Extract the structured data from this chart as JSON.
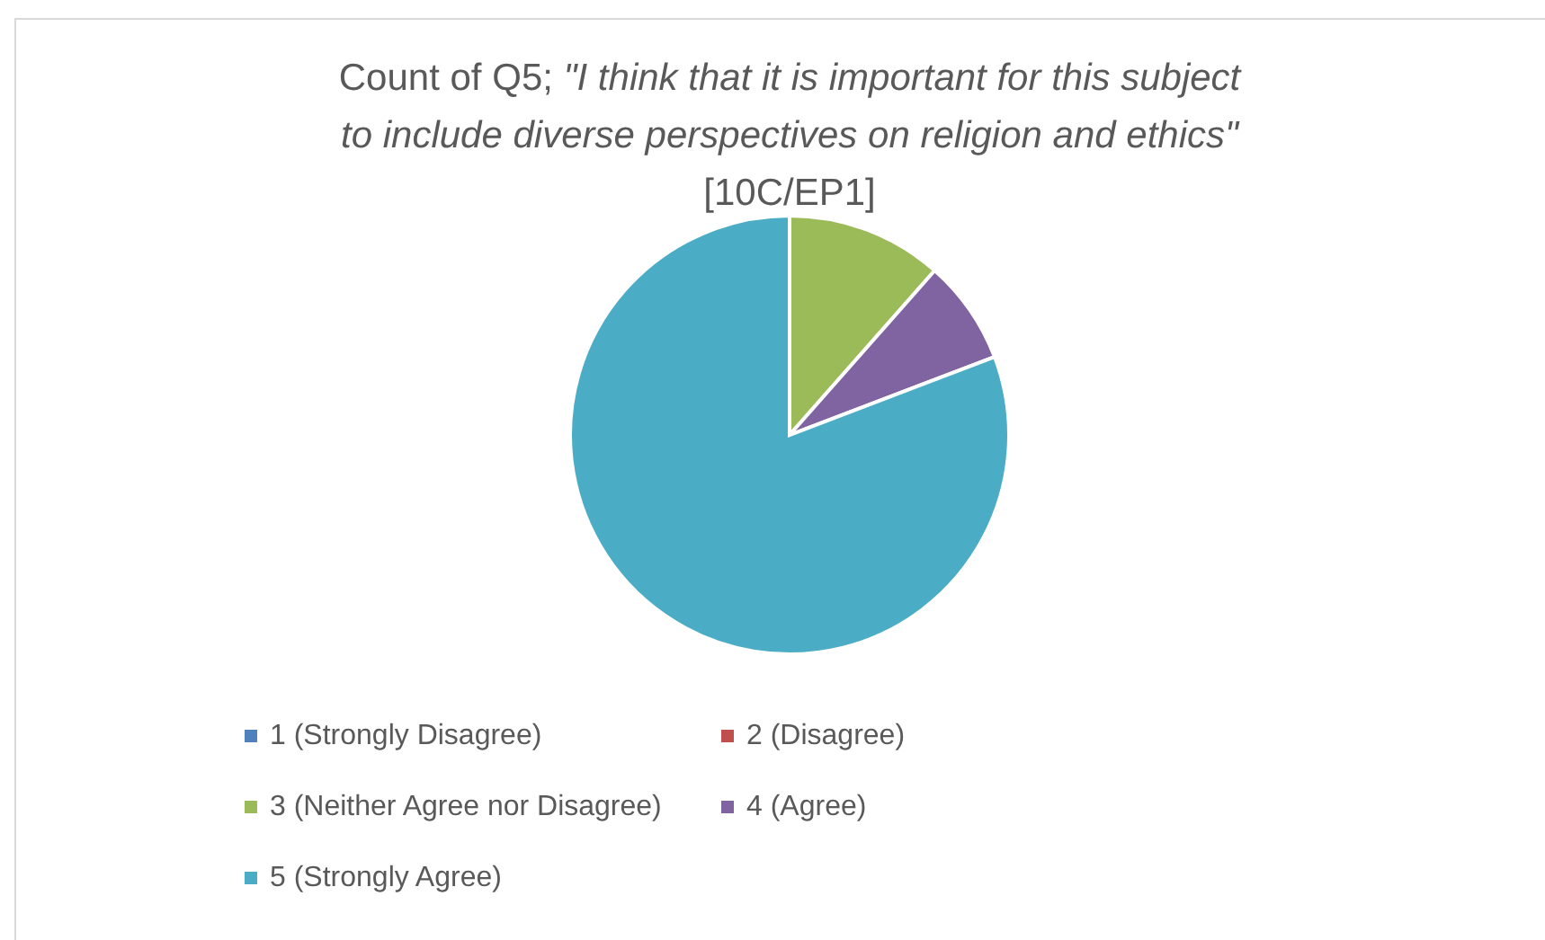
{
  "chart_data": {
    "type": "pie",
    "title": "Count of Q5; \"I think that it is important for this subject to include diverse perspectives on religion and ethics\" [10C/EP1]",
    "categories": [
      "1 (Strongly Disagree)",
      "2 (Disagree)",
      "3 (Neither Agree nor Disagree)",
      "4 (Agree)",
      "5 (Strongly Agree)"
    ],
    "values": [
      0,
      0,
      11.5,
      7.7,
      80.8
    ],
    "colors": [
      "#4f81bd",
      "#c0504d",
      "#9bbb59",
      "#8064a2",
      "#4bacc6"
    ],
    "legend": "bottom"
  }
}
